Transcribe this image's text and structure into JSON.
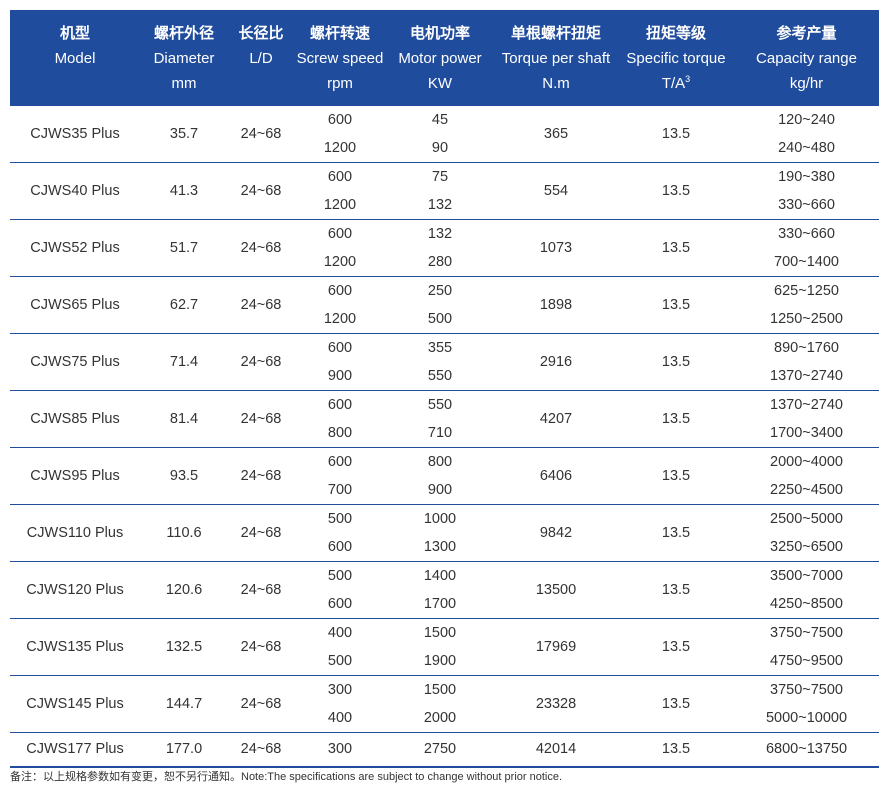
{
  "header": [
    [
      "机型",
      "Model"
    ],
    [
      "螺杆外径",
      "Diameter",
      "mm"
    ],
    [
      "长径比",
      "L/D"
    ],
    [
      "螺杆转速",
      "Screw speed",
      "rpm"
    ],
    [
      "电机功率",
      "Motor power",
      "KW"
    ],
    [
      "单根螺杆扭矩",
      "Torque per shaft",
      "N.m"
    ],
    [
      "扭矩等级",
      "Specific torque",
      "T/A",
      "3"
    ],
    [
      "参考产量",
      "Capacity range",
      "kg/hr"
    ]
  ],
  "rows": [
    {
      "model": "CJWS35 Plus",
      "diameter": "35.7",
      "ld": "24~68",
      "speeds": [
        "600",
        "1200"
      ],
      "powers": [
        "45",
        "90"
      ],
      "torque": "365",
      "specific": "13.5",
      "capacity": [
        "120~240",
        "240~480"
      ]
    },
    {
      "model": "CJWS40 Plus",
      "diameter": "41.3",
      "ld": "24~68",
      "speeds": [
        "600",
        "1200"
      ],
      "powers": [
        "75",
        "132"
      ],
      "torque": "554",
      "specific": "13.5",
      "capacity": [
        "190~380",
        "330~660"
      ]
    },
    {
      "model": "CJWS52 Plus",
      "diameter": "51.7",
      "ld": "24~68",
      "speeds": [
        "600",
        "1200"
      ],
      "powers": [
        "132",
        "280"
      ],
      "torque": "1073",
      "specific": "13.5",
      "capacity": [
        "330~660",
        "700~1400"
      ]
    },
    {
      "model": "CJWS65 Plus",
      "diameter": "62.7",
      "ld": "24~68",
      "speeds": [
        "600",
        "1200"
      ],
      "powers": [
        "250",
        "500"
      ],
      "torque": "1898",
      "specific": "13.5",
      "capacity": [
        "625~1250",
        "1250~2500"
      ]
    },
    {
      "model": "CJWS75 Plus",
      "diameter": "71.4",
      "ld": "24~68",
      "speeds": [
        "600",
        "900"
      ],
      "powers": [
        "355",
        "550"
      ],
      "torque": "2916",
      "specific": "13.5",
      "capacity": [
        "890~1760",
        "1370~2740"
      ]
    },
    {
      "model": "CJWS85 Plus",
      "diameter": "81.4",
      "ld": "24~68",
      "speeds": [
        "600",
        "800"
      ],
      "powers": [
        "550",
        "710"
      ],
      "torque": "4207",
      "specific": "13.5",
      "capacity": [
        "1370~2740",
        "1700~3400"
      ]
    },
    {
      "model": "CJWS95 Plus",
      "diameter": "93.5",
      "ld": "24~68",
      "speeds": [
        "600",
        "700"
      ],
      "powers": [
        "800",
        "900"
      ],
      "torque": "6406",
      "specific": "13.5",
      "capacity": [
        "2000~4000",
        "2250~4500"
      ]
    },
    {
      "model": "CJWS110 Plus",
      "diameter": "110.6",
      "ld": "24~68",
      "speeds": [
        "500",
        "600"
      ],
      "powers": [
        "1000",
        "1300"
      ],
      "torque": "9842",
      "specific": "13.5",
      "capacity": [
        "2500~5000",
        "3250~6500"
      ]
    },
    {
      "model": "CJWS120 Plus",
      "diameter": "120.6",
      "ld": "24~68",
      "speeds": [
        "500",
        "600"
      ],
      "powers": [
        "1400",
        "1700"
      ],
      "torque": "13500",
      "specific": "13.5",
      "capacity": [
        "3500~7000",
        "4250~8500"
      ]
    },
    {
      "model": "CJWS135 Plus",
      "diameter": "132.5",
      "ld": "24~68",
      "speeds": [
        "400",
        "500"
      ],
      "powers": [
        "1500",
        "1900"
      ],
      "torque": "17969",
      "specific": "13.5",
      "capacity": [
        "3750~7500",
        "4750~9500"
      ]
    },
    {
      "model": "CJWS145 Plus",
      "diameter": "144.7",
      "ld": "24~68",
      "speeds": [
        "300",
        "400"
      ],
      "powers": [
        "1500",
        "2000"
      ],
      "torque": "23328",
      "specific": "13.5",
      "capacity": [
        "3750~7500",
        "5000~10000"
      ]
    },
    {
      "model": "CJWS177 Plus",
      "diameter": "177.0",
      "ld": "24~68",
      "speeds": [
        "300"
      ],
      "powers": [
        "2750"
      ],
      "torque": "42014",
      "specific": "13.5",
      "capacity": [
        "6800~13750"
      ]
    }
  ],
  "note": "备注：以上规格参数如有变更，恕不另行通知。Note:The specifications are subject to change without prior notice."
}
